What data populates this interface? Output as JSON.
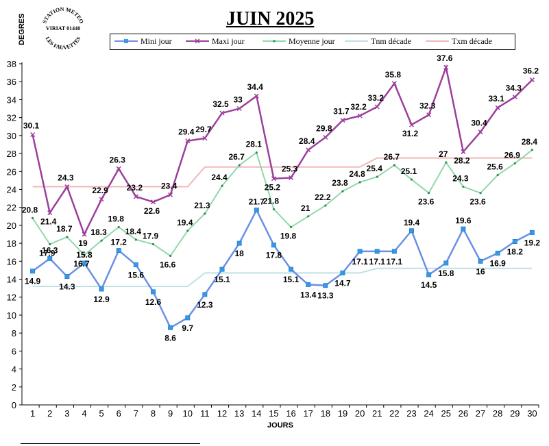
{
  "logo": {
    "top_text": "STATION METEO",
    "middle_text": "VIRIAT 01440",
    "bottom_text": "LES FAUVETTES"
  },
  "chart_data": {
    "type": "line",
    "title": "JUIN 2025",
    "ylabel": "DEGRES",
    "xlabel": "JOURS",
    "x": [
      1,
      2,
      3,
      4,
      5,
      6,
      7,
      8,
      9,
      10,
      11,
      12,
      13,
      14,
      15,
      16,
      17,
      18,
      19,
      20,
      21,
      22,
      23,
      24,
      25,
      26,
      27,
      28,
      29,
      30
    ],
    "ylim": [
      0,
      38
    ],
    "yticks": [
      0,
      2,
      4,
      6,
      8,
      10,
      12,
      14,
      16,
      18,
      20,
      22,
      24,
      26,
      28,
      30,
      32,
      34,
      36,
      38
    ],
    "legend_position": "top",
    "series": [
      {
        "name": "Mini jour",
        "color": "#6b8fe6",
        "marker": "x-square",
        "values": [
          14.9,
          16.3,
          14.3,
          15.8,
          12.9,
          17.2,
          15.6,
          12.6,
          8.6,
          9.7,
          12.3,
          15.1,
          18,
          21.7,
          17.8,
          15.1,
          13.4,
          13.3,
          14.7,
          17.1,
          17.1,
          17.1,
          19.4,
          14.5,
          15.8,
          19.6,
          16,
          16.9,
          18.2,
          19.2
        ]
      },
      {
        "name": "Maxi jour",
        "color": "#9b3f9b",
        "marker": "x",
        "values": [
          30.1,
          21.4,
          24.3,
          19,
          22.9,
          26.3,
          23.2,
          22.6,
          23.4,
          29.4,
          29.7,
          32.5,
          33,
          34.4,
          25.2,
          25.3,
          28.4,
          29.8,
          31.7,
          32.2,
          33.2,
          35.8,
          31.2,
          32.3,
          37.6,
          28.2,
          30.4,
          33.1,
          34.3,
          36.2
        ]
      },
      {
        "name": "Moyenne jour",
        "color": "#8fd9a8",
        "marker": "dot",
        "values": [
          20.8,
          17.9,
          18.7,
          16.7,
          18.3,
          19.8,
          18.4,
          17.9,
          16.6,
          19.4,
          21.3,
          24.4,
          26.7,
          28.1,
          21.8,
          19.8,
          21,
          22.2,
          23.8,
          24.8,
          25.4,
          26.7,
          25.1,
          23.6,
          27,
          24.3,
          23.6,
          25.6,
          26.9,
          28.4
        ]
      },
      {
        "name": "Tnm décade",
        "color": "#bfe0e4",
        "marker": "none",
        "values": [
          13.2,
          13.2,
          13.2,
          13.2,
          13.2,
          13.2,
          13.2,
          13.2,
          13.2,
          13.2,
          14.7,
          14.7,
          14.7,
          14.7,
          14.7,
          14.7,
          14.7,
          14.7,
          14.7,
          14.7,
          15.2,
          15.2,
          15.2,
          15.2,
          15.2,
          15.2,
          15.2,
          15.2,
          15.2,
          15.2
        ]
      },
      {
        "name": "Txm décade",
        "color": "#f0b8b8",
        "marker": "none",
        "values": [
          24.3,
          24.3,
          24.3,
          24.3,
          24.3,
          24.3,
          24.3,
          24.3,
          24.3,
          24.3,
          26.5,
          26.5,
          26.5,
          26.5,
          26.5,
          26.5,
          26.5,
          26.5,
          26.5,
          26.5,
          27.5,
          27.5,
          27.5,
          27.5,
          27.5,
          27.5,
          27.5,
          27.5,
          27.5,
          27.5
        ]
      }
    ],
    "data_labels": {
      "Mini jour": [
        "14.9",
        "16.3",
        "14.3",
        "15.8",
        "12.9",
        "17.2",
        "15.6",
        "12.6",
        "8.6",
        "9.7",
        "12.3",
        "15.1",
        "18",
        "21.7",
        "17.8",
        "15.1",
        "13.4",
        "13.3",
        "14.7",
        "17.1",
        "17.1",
        "17.1",
        "19.4",
        "14.5",
        "15.8",
        "19.6",
        "16",
        "16.9",
        "18.2",
        "19.2"
      ],
      "Maxi jour": [
        "30.1",
        "21.4",
        "24.3",
        "19",
        "22.9",
        "26.3",
        "23.2",
        "22.6",
        "23.4",
        "29.4",
        "29.7",
        "32.5",
        "33",
        "34.4",
        "25.2",
        "25.3",
        "28.4",
        "29.8",
        "31.7",
        "32.2",
        "33.2",
        "35.8",
        "31.2",
        "32.3",
        "37.6",
        "28.2",
        "30.4",
        "33.1",
        "34.3",
        "36.2"
      ],
      "Moyenne jour": [
        "20.8",
        "17.9",
        "18.7",
        "16.7",
        "18.3",
        "19.8",
        "18.4",
        "17.9",
        "16.6",
        "19.4",
        "21.3",
        "24.4",
        "26.7",
        "28.1",
        "21.8",
        "19.8",
        "21",
        "22.2",
        "23.8",
        "24.8",
        "25.4",
        "26.7",
        "25.1",
        "23.6",
        "27",
        "24.3",
        "23.6",
        "25.6",
        "26.9",
        "28.4"
      ]
    }
  }
}
